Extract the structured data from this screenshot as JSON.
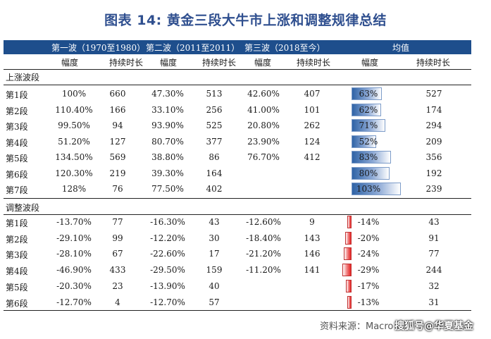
{
  "title": "图表 14: 黄金三段大牛市上涨和调整规律总结",
  "header": {
    "wave1": "第一波（1970至1980）",
    "wave2": "第二波（2011至2011）",
    "wave3": "第三波（2018至今）",
    "avg": "均值"
  },
  "subheader": [
    "幅度",
    "持续时长",
    "幅度",
    "持续时长",
    "幅度",
    "持续时长",
    "幅度",
    "持续时长"
  ],
  "sections": {
    "up_label": "上涨波段",
    "down_label": "调整波段"
  },
  "up_rows": [
    {
      "stage": "第1段",
      "w1a": "100%",
      "w1d": "660",
      "w2a": "47.30%",
      "w2d": "513",
      "w3a": "42.60%",
      "w3d": "407",
      "avga": "63%",
      "avgd": "527",
      "bar": 63
    },
    {
      "stage": "第2段",
      "w1a": "110.40%",
      "w1d": "166",
      "w2a": "33.10%",
      "w2d": "256",
      "w3a": "41.00%",
      "w3d": "101",
      "avga": "62%",
      "avgd": "174",
      "bar": 62
    },
    {
      "stage": "第3段",
      "w1a": "99.50%",
      "w1d": "94",
      "w2a": "93.90%",
      "w2d": "525",
      "w3a": "20.80%",
      "w3d": "262",
      "avga": "71%",
      "avgd": "294",
      "bar": 71
    },
    {
      "stage": "第4段",
      "w1a": "51.20%",
      "w1d": "127",
      "w2a": "80.70%",
      "w2d": "377",
      "w3a": "23.90%",
      "w3d": "124",
      "avga": "52%",
      "avgd": "209",
      "bar": 52
    },
    {
      "stage": "第5段",
      "w1a": "134.50%",
      "w1d": "569",
      "w2a": "38.80%",
      "w2d": "86",
      "w3a": "76.70%",
      "w3d": "412",
      "avga": "83%",
      "avgd": "356",
      "bar": 83
    },
    {
      "stage": "第6段",
      "w1a": "120.30%",
      "w1d": "219",
      "w2a": "39.30%",
      "w2d": "164",
      "w3a": "",
      "w3d": "",
      "avga": "80%",
      "avgd": "192",
      "bar": 80
    },
    {
      "stage": "第7段",
      "w1a": "128%",
      "w1d": "76",
      "w2a": "77.50%",
      "w2d": "402",
      "w3a": "",
      "w3d": "",
      "avga": "103%",
      "avgd": "239",
      "bar": 103
    }
  ],
  "down_rows": [
    {
      "stage": "第1段",
      "w1a": "-13.70%",
      "w1d": "77",
      "w2a": "-16.30%",
      "w2d": "43",
      "w3a": "-12.60%",
      "w3d": "9",
      "avga": "-14%",
      "avgd": "43",
      "bar": -14
    },
    {
      "stage": "第2段",
      "w1a": "-29.10%",
      "w1d": "99",
      "w2a": "-12.20%",
      "w2d": "30",
      "w3a": "-18.40%",
      "w3d": "143",
      "avga": "-20%",
      "avgd": "91",
      "bar": -20
    },
    {
      "stage": "第3段",
      "w1a": "-28.10%",
      "w1d": "67",
      "w2a": "-22.60%",
      "w2d": "17",
      "w3a": "-21.20%",
      "w3d": "146",
      "avga": "-24%",
      "avgd": "77",
      "bar": -24
    },
    {
      "stage": "第4段",
      "w1a": "-46.90%",
      "w1d": "433",
      "w2a": "-29.50%",
      "w2d": "159",
      "w3a": "-11.20%",
      "w3d": "141",
      "avga": "-29%",
      "avgd": "244",
      "bar": -29
    },
    {
      "stage": "第5段",
      "w1a": "-20.30%",
      "w1d": "23",
      "w2a": "-13.90%",
      "w2d": "40",
      "w3a": "",
      "w3d": "",
      "avga": "-17%",
      "avgd": "32",
      "bar": -17
    },
    {
      "stage": "第6段",
      "w1a": "-12.70%",
      "w1d": "4",
      "w2a": "-12.70%",
      "w2d": "57",
      "w3a": "",
      "w3d": "",
      "avga": "-13%",
      "avgd": "31",
      "bar": -13
    }
  ],
  "footer": "资料来源：Macro",
  "watermark": "搜狐号@华夏基金",
  "colors": {
    "header_bg": "#1e4e8c",
    "up_bar": "#2f63a6",
    "down_bar": "#e42323",
    "title": "#2f4f8f"
  }
}
